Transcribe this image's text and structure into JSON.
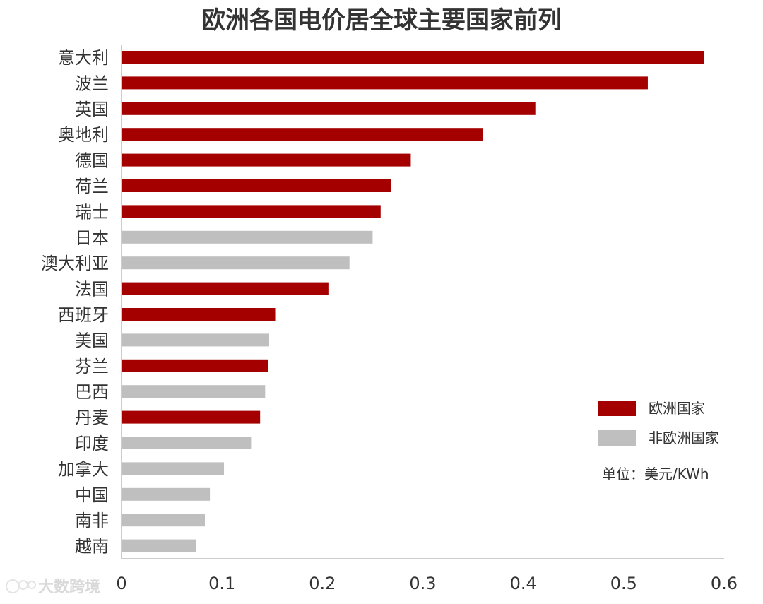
{
  "chart_data": {
    "type": "bar",
    "orientation": "horizontal",
    "title": "欧洲各国电价居全球主要国家前列",
    "xlabel": "",
    "ylabel": "",
    "xlim": [
      0,
      0.6
    ],
    "xticks": [
      "0",
      "0.1",
      "0.2",
      "0.3",
      "0.4",
      "0.5",
      "0.6"
    ],
    "grid": false,
    "legend_position": "right",
    "unit_note": "单位：美元/KWh",
    "categories": [
      "意大利",
      "波兰",
      "英国",
      "奥地利",
      "德国",
      "荷兰",
      "瑞士",
      "日本",
      "澳大利亚",
      "法国",
      "西班牙",
      "美国",
      "芬兰",
      "巴西",
      "丹麦",
      "印度",
      "加拿大",
      "中国",
      "南非",
      "越南"
    ],
    "values": [
      0.58,
      0.524,
      0.412,
      0.36,
      0.288,
      0.268,
      0.258,
      0.25,
      0.227,
      0.206,
      0.153,
      0.147,
      0.146,
      0.143,
      0.138,
      0.129,
      0.102,
      0.088,
      0.083,
      0.074
    ],
    "groups": [
      "欧洲国家",
      "欧洲国家",
      "欧洲国家",
      "欧洲国家",
      "欧洲国家",
      "欧洲国家",
      "欧洲国家",
      "非欧洲国家",
      "非欧洲国家",
      "欧洲国家",
      "欧洲国家",
      "非欧洲国家",
      "欧洲国家",
      "非欧洲国家",
      "欧洲国家",
      "非欧洲国家",
      "非欧洲国家",
      "非欧洲国家",
      "非欧洲国家",
      "非欧洲国家"
    ],
    "series": [
      {
        "name": "欧洲国家",
        "color": "#a50000"
      },
      {
        "name": "非欧洲国家",
        "color": "#bfbfbf"
      }
    ]
  },
  "watermark": {
    "text": "大数跨境",
    "icon": "logo-mark"
  }
}
